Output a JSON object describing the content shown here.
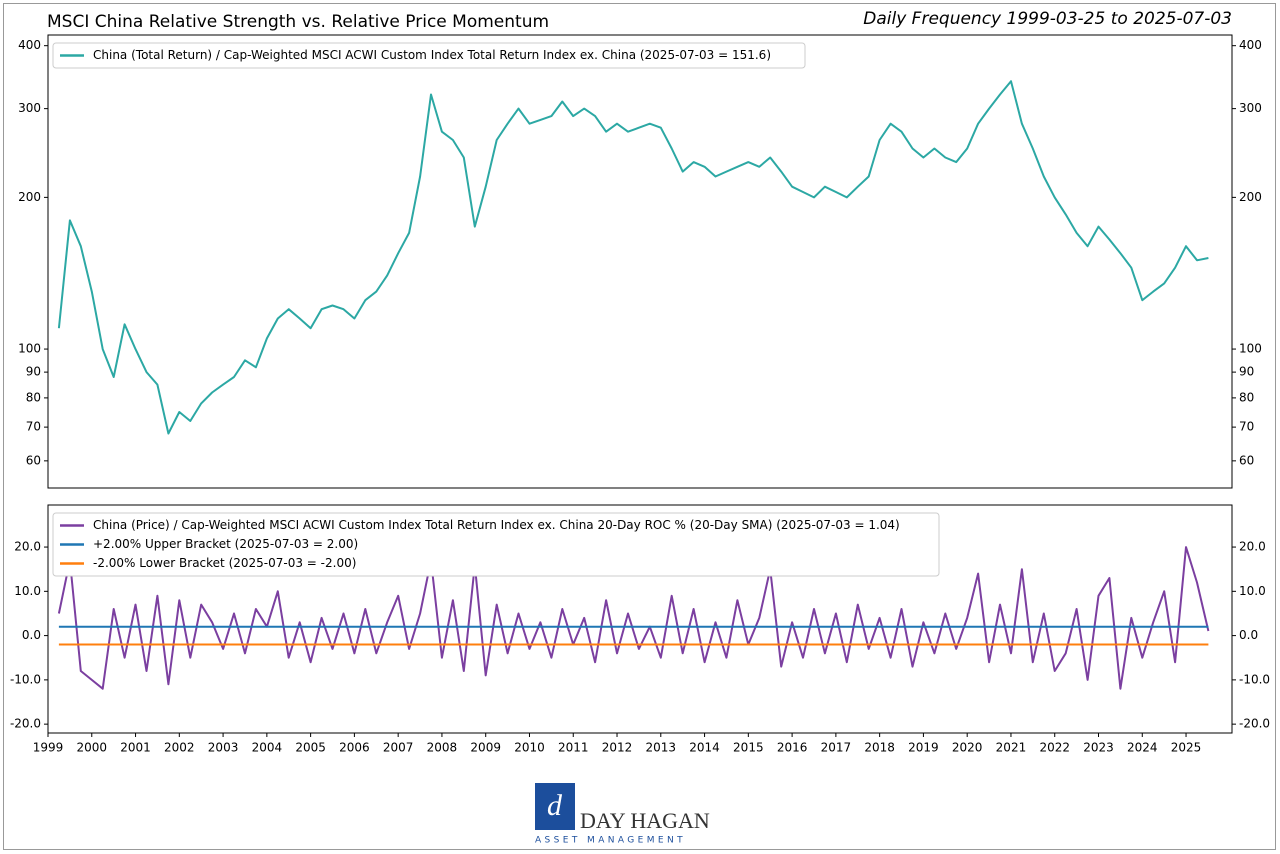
{
  "header": {
    "title": "MSCI China Relative Strength vs. Relative Price Momentum",
    "subtitle": "Daily Frequency 1999-03-25 to 2025-07-03"
  },
  "logo": {
    "name": "DAY HAGAN",
    "tagline": "ASSET MANAGEMENT"
  },
  "chart_data": [
    {
      "type": "line",
      "log_scale": true,
      "xlim": [
        1999,
        2026.05
      ],
      "ylim": [
        53,
        420
      ],
      "yticks": [
        60,
        70,
        80,
        90,
        100,
        200,
        300,
        400
      ],
      "legend": "upper left",
      "series": [
        {
          "name": "China (Total Return) / Cap-Weighted MSCI ACWI Custom Index Total Return Index ex. China (2025-07-03 = 151.6)",
          "color": "#2ca8a4",
          "x": [
            1999.25,
            1999.5,
            1999.75,
            2000,
            2000.25,
            2000.5,
            2000.75,
            2001,
            2001.25,
            2001.5,
            2001.75,
            2002,
            2002.25,
            2002.5,
            2002.75,
            2003,
            2003.25,
            2003.5,
            2003.75,
            2004,
            2004.25,
            2004.5,
            2004.75,
            2005,
            2005.25,
            2005.5,
            2005.75,
            2006,
            2006.25,
            2006.5,
            2006.75,
            2007,
            2007.25,
            2007.5,
            2007.75,
            2008,
            2008.25,
            2008.5,
            2008.75,
            2009,
            2009.25,
            2009.5,
            2009.75,
            2010,
            2010.25,
            2010.5,
            2010.75,
            2011,
            2011.25,
            2011.5,
            2011.75,
            2012,
            2012.25,
            2012.5,
            2012.75,
            2013,
            2013.25,
            2013.5,
            2013.75,
            2014,
            2014.25,
            2014.5,
            2014.75,
            2015,
            2015.25,
            2015.5,
            2015.75,
            2016,
            2016.25,
            2016.5,
            2016.75,
            2017,
            2017.25,
            2017.5,
            2017.75,
            2018,
            2018.25,
            2018.5,
            2018.75,
            2019,
            2019.25,
            2019.5,
            2019.75,
            2020,
            2020.25,
            2020.5,
            2020.75,
            2021,
            2021.25,
            2021.5,
            2021.75,
            2022,
            2022.25,
            2022.5,
            2022.75,
            2023,
            2023.25,
            2023.5,
            2023.75,
            2024,
            2024.25,
            2024.5,
            2024.75,
            2025,
            2025.25,
            2025.51
          ],
          "values": [
            110,
            180,
            160,
            130,
            100,
            88,
            112,
            100,
            90,
            85,
            68,
            75,
            72,
            78,
            82,
            85,
            88,
            95,
            92,
            105,
            115,
            120,
            115,
            110,
            120,
            122,
            120,
            115,
            125,
            130,
            140,
            155,
            170,
            220,
            320,
            270,
            260,
            240,
            175,
            210,
            260,
            280,
            300,
            280,
            285,
            290,
            310,
            290,
            300,
            290,
            270,
            280,
            270,
            275,
            280,
            275,
            250,
            225,
            235,
            230,
            220,
            225,
            230,
            235,
            230,
            240,
            225,
            210,
            205,
            200,
            210,
            205,
            200,
            210,
            220,
            260,
            280,
            270,
            250,
            240,
            250,
            240,
            235,
            250,
            280,
            300,
            320,
            340,
            280,
            250,
            220,
            200,
            185,
            170,
            160,
            175,
            165,
            155,
            145,
            125,
            130,
            135,
            145,
            160,
            150,
            151.6
          ]
        }
      ]
    },
    {
      "type": "line",
      "xlim": [
        1999,
        2026.05
      ],
      "ylim": [
        -22,
        29.5
      ],
      "yticks": [
        {
          "value": 20,
          "label": "20.0"
        },
        {
          "value": 10,
          "label": "10.0"
        },
        {
          "value": 0,
          "label": "0.0"
        },
        {
          "value": -10,
          "label": "-10.0"
        },
        {
          "value": -20,
          "label": "-20.0"
        }
      ],
      "xticks": [
        1999,
        2000,
        2001,
        2002,
        2003,
        2004,
        2005,
        2006,
        2007,
        2008,
        2009,
        2010,
        2011,
        2012,
        2013,
        2014,
        2015,
        2016,
        2017,
        2018,
        2019,
        2020,
        2021,
        2022,
        2023,
        2024,
        2025
      ],
      "legend": "upper left",
      "series": [
        {
          "name": "China (Price) / Cap-Weighted MSCI ACWI Custom Index Total Return Index ex. China 20-Day ROC % (20-Day SMA) (2025-07-03 = 1.04)",
          "color": "#7b3fa0",
          "x": [
            1999.25,
            1999.5,
            1999.75,
            2000,
            2000.25,
            2000.5,
            2000.75,
            2001,
            2001.25,
            2001.5,
            2001.75,
            2002,
            2002.25,
            2002.5,
            2002.75,
            2003,
            2003.25,
            2003.5,
            2003.75,
            2004,
            2004.25,
            2004.5,
            2004.75,
            2005,
            2005.25,
            2005.5,
            2005.75,
            2006,
            2006.25,
            2006.5,
            2006.75,
            2007,
            2007.25,
            2007.5,
            2007.75,
            2008,
            2008.25,
            2008.5,
            2008.75,
            2009,
            2009.25,
            2009.5,
            2009.75,
            2010,
            2010.25,
            2010.5,
            2010.75,
            2011,
            2011.25,
            2011.5,
            2011.75,
            2012,
            2012.25,
            2012.5,
            2012.75,
            2013,
            2013.25,
            2013.5,
            2013.75,
            2014,
            2014.25,
            2014.5,
            2014.75,
            2015,
            2015.25,
            2015.5,
            2015.75,
            2016,
            2016.25,
            2016.5,
            2016.75,
            2017,
            2017.25,
            2017.5,
            2017.75,
            2018,
            2018.25,
            2018.5,
            2018.75,
            2019,
            2019.25,
            2019.5,
            2019.75,
            2020,
            2020.25,
            2020.5,
            2020.75,
            2021,
            2021.25,
            2021.5,
            2021.75,
            2022,
            2022.25,
            2022.5,
            2022.75,
            2023,
            2023.25,
            2023.5,
            2023.75,
            2024,
            2024.25,
            2024.5,
            2024.75,
            2025,
            2025.25,
            2025.51
          ],
          "values": [
            5,
            17,
            -8,
            -10,
            -12,
            6,
            -5,
            7,
            -8,
            9,
            -11,
            8,
            -5,
            7,
            3,
            -3,
            5,
            -4,
            6,
            2,
            10,
            -5,
            3,
            -6,
            4,
            -3,
            5,
            -4,
            6,
            -4,
            3,
            9,
            -3,
            5,
            17,
            -5,
            8,
            -8,
            16,
            -9,
            7,
            -4,
            5,
            -3,
            3,
            -5,
            6,
            -2,
            4,
            -6,
            8,
            -4,
            5,
            -3,
            2,
            -5,
            9,
            -4,
            6,
            -6,
            3,
            -5,
            8,
            -2,
            4,
            15,
            -7,
            3,
            -5,
            6,
            -4,
            5,
            -6,
            7,
            -3,
            4,
            -5,
            6,
            -7,
            3,
            -4,
            5,
            -3,
            4,
            14,
            -6,
            7,
            -4,
            15,
            -6,
            5,
            -8,
            -4,
            6,
            -10,
            9,
            13,
            -12,
            4,
            -5,
            3,
            10,
            -6,
            20,
            12,
            1.04
          ]
        },
        {
          "name": "+2.00% Upper Bracket (2025-07-03 = 2.00)",
          "color": "#1f77b4",
          "x": [
            1999.25,
            2025.51
          ],
          "values": [
            2,
            2
          ]
        },
        {
          "name": "-2.00% Lower Bracket (2025-07-03 = -2.00)",
          "color": "#ff7f0e",
          "x": [
            1999.25,
            2025.51
          ],
          "values": [
            -2,
            -2
          ]
        }
      ]
    }
  ]
}
